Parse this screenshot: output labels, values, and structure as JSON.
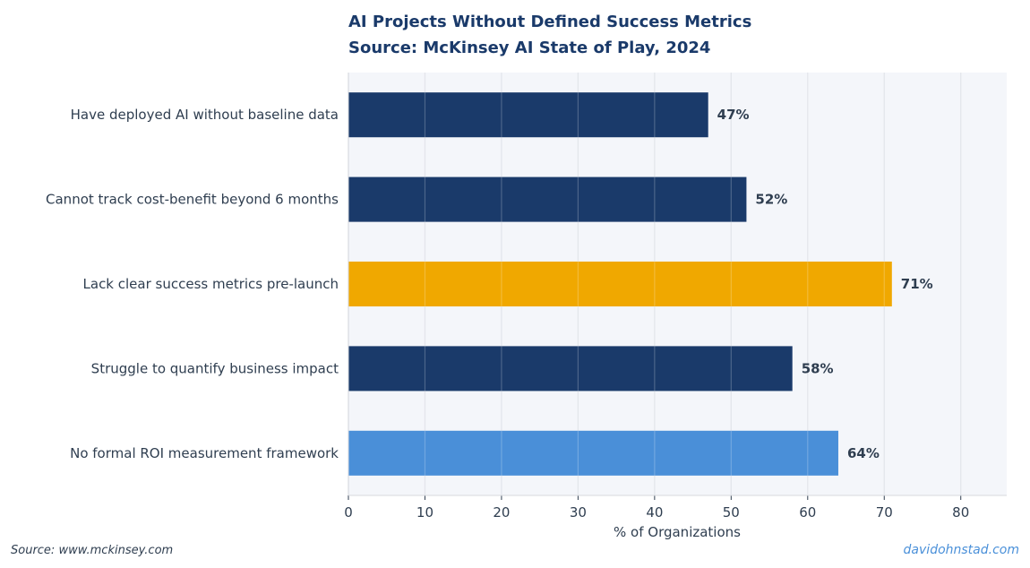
{
  "chart_data": {
    "type": "bar",
    "orientation": "horizontal",
    "title": "AI Projects Without Defined Success Metrics",
    "subtitle": "Source: McKinsey AI State of Play, 2024",
    "categories": [
      "Have deployed AI without baseline data",
      "Cannot track cost-benefit beyond 6 months",
      "Lack clear success metrics pre-launch",
      "Struggle to quantify business impact",
      "No formal ROI measurement framework"
    ],
    "values": [
      47,
      52,
      71,
      58,
      64
    ],
    "value_labels": [
      "47%",
      "52%",
      "71%",
      "58%",
      "64%"
    ],
    "bar_colors": [
      "#1a3a6a",
      "#1a3a6a",
      "#f0a800",
      "#1a3a6a",
      "#4a8fd8"
    ],
    "xlabel": "% of Organizations",
    "ylabel": "",
    "xlim": [
      0,
      86
    ],
    "xticks": [
      0,
      10,
      20,
      30,
      40,
      50,
      60,
      70,
      80
    ],
    "grid": true,
    "plot_background": "#f4f6fa",
    "grid_color": "#dcdfe6"
  },
  "footer": {
    "source": "Source: www.mckinsey.com",
    "credit": "davidohnstad.com"
  }
}
